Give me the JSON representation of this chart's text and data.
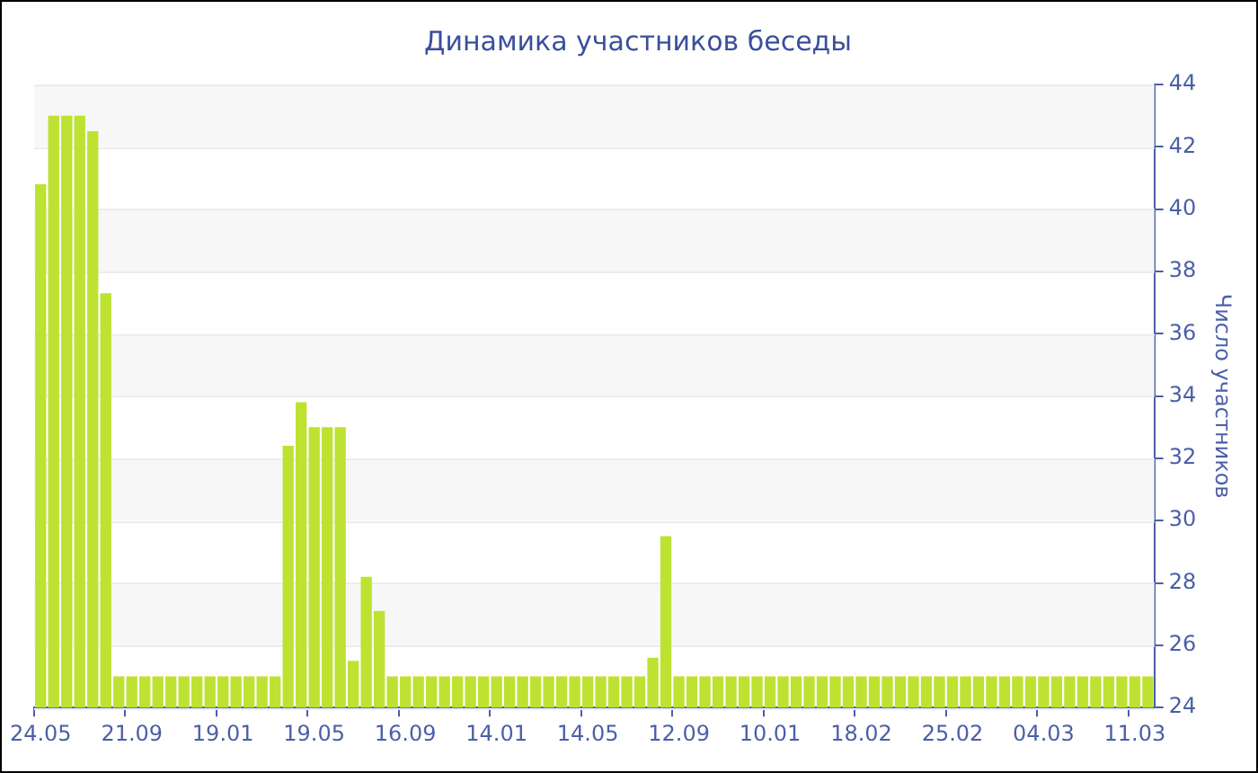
{
  "chart_data": {
    "type": "bar",
    "title": "Динамика участников беседы",
    "ylabel": "Число участников",
    "categories": [
      "24.05",
      null,
      null,
      null,
      null,
      null,
      null,
      "21.09",
      null,
      null,
      null,
      null,
      null,
      null,
      "19.01",
      null,
      null,
      null,
      null,
      null,
      null,
      "19.05",
      null,
      null,
      null,
      null,
      null,
      null,
      "16.09",
      null,
      null,
      null,
      null,
      null,
      null,
      "14.01",
      null,
      null,
      null,
      null,
      null,
      null,
      "14.05",
      null,
      null,
      null,
      null,
      null,
      null,
      "12.09",
      null,
      null,
      null,
      null,
      null,
      null,
      "10.01",
      null,
      null,
      null,
      null,
      null,
      null,
      "18.02",
      null,
      null,
      null,
      null,
      null,
      null,
      "25.02",
      null,
      null,
      null,
      null,
      null,
      null,
      "04.03",
      null,
      null,
      null,
      null,
      null,
      null,
      "11.03",
      null
    ],
    "values": [
      40.8,
      43,
      43,
      43,
      42.5,
      37.3,
      25,
      25,
      25,
      25,
      25,
      25,
      25,
      25,
      25,
      25,
      25,
      25,
      25,
      32.4,
      33.8,
      33,
      33,
      33,
      25.5,
      28.2,
      27.1,
      25,
      25,
      25,
      25,
      25,
      25,
      25,
      25,
      25,
      25,
      25,
      25,
      25,
      25,
      25,
      25,
      25,
      25,
      25,
      25,
      25.6,
      29.5,
      25,
      25,
      25,
      25,
      25,
      25,
      25,
      25,
      25,
      25,
      25,
      25,
      25,
      25,
      25,
      25,
      25,
      25,
      25,
      25,
      25,
      25,
      25,
      25,
      25,
      25,
      25,
      25,
      25,
      25,
      25,
      25,
      25,
      25,
      25,
      25,
      25
    ],
    "color": "#bde232",
    "ylim": [
      24,
      44
    ],
    "yticks": [
      24,
      26,
      28,
      30,
      32,
      34,
      36,
      38,
      40,
      42,
      44
    ],
    "grid": true,
    "legend": false
  }
}
